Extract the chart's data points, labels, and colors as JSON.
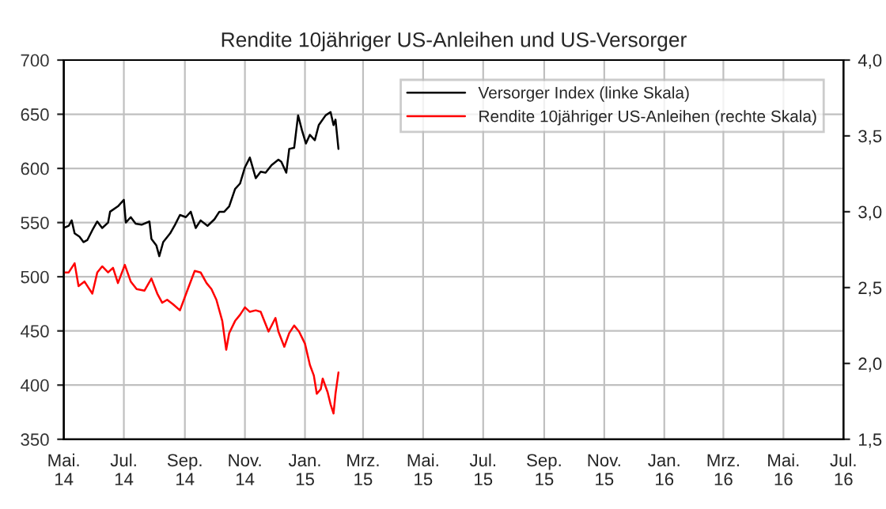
{
  "chart_data": {
    "type": "line",
    "title": "Rendite 10jähriger US-Anleihen und US-Versorger",
    "xlim": [
      "2014-05-01",
      "2016-07-01"
    ],
    "xticks": [
      {
        "value": "2014-05-01",
        "label": "Mai.\n14"
      },
      {
        "value": "2014-07-01",
        "label": "Jul.\n14"
      },
      {
        "value": "2014-09-01",
        "label": "Sep.\n14"
      },
      {
        "value": "2014-11-01",
        "label": "Nov.\n14"
      },
      {
        "value": "2015-01-01",
        "label": "Jan.\n15"
      },
      {
        "value": "2015-03-01",
        "label": "Mrz.\n15"
      },
      {
        "value": "2015-05-01",
        "label": "Mai.\n15"
      },
      {
        "value": "2015-07-01",
        "label": "Jul.\n15"
      },
      {
        "value": "2015-09-01",
        "label": "Sep.\n15"
      },
      {
        "value": "2015-11-01",
        "label": "Nov.\n15"
      },
      {
        "value": "2016-01-01",
        "label": "Jan.\n16"
      },
      {
        "value": "2016-03-01",
        "label": "Mrz.\n16"
      },
      {
        "value": "2016-05-01",
        "label": "Mai.\n16"
      },
      {
        "value": "2016-07-01",
        "label": "Jul.\n16"
      }
    ],
    "ylim": [
      350,
      700
    ],
    "yticks": [
      350,
      400,
      450,
      500,
      550,
      600,
      650,
      700
    ],
    "y2lim": [
      1.5,
      4.0
    ],
    "y2ticks": [
      {
        "value": 1.5,
        "label": "1,5"
      },
      {
        "value": 2.0,
        "label": "2,0"
      },
      {
        "value": 2.5,
        "label": "2,5"
      },
      {
        "value": 3.0,
        "label": "3,0"
      },
      {
        "value": 3.5,
        "label": "3,5"
      },
      {
        "value": 4.0,
        "label": "4,0"
      }
    ],
    "grid": true,
    "legend": "top right",
    "series": [
      {
        "name": "Versorger Index (linke Skala)",
        "color": "#000000",
        "x": [
          "2014-05-01",
          "2014-05-06",
          "2014-05-09",
          "2014-05-12",
          "2014-05-17",
          "2014-05-21",
          "2014-05-25",
          "2014-05-30",
          "2014-06-04",
          "2014-06-09",
          "2014-06-15",
          "2014-06-17",
          "2014-06-25",
          "2014-07-01",
          "2014-07-03",
          "2014-07-08",
          "2014-07-13",
          "2014-07-19",
          "2014-07-27",
          "2014-07-29",
          "2014-08-03",
          "2014-08-06",
          "2014-08-10",
          "2014-08-17",
          "2014-08-22",
          "2014-08-27",
          "2014-09-02",
          "2014-09-07",
          "2014-09-12",
          "2014-09-17",
          "2014-09-24",
          "2014-10-01",
          "2014-10-06",
          "2014-10-11",
          "2014-10-16",
          "2014-10-22",
          "2014-10-27",
          "2014-11-01",
          "2014-11-06",
          "2014-11-12",
          "2014-11-17",
          "2014-11-22",
          "2014-11-28",
          "2014-12-05",
          "2014-12-08",
          "2014-12-13",
          "2014-12-16",
          "2014-12-21",
          "2014-12-25",
          "2014-12-29",
          "2015-01-02",
          "2015-01-06",
          "2015-01-11",
          "2015-01-15",
          "2015-01-22",
          "2015-01-27",
          "2015-01-30",
          "2015-02-01",
          "2015-02-04"
        ],
        "values": [
          545,
          547,
          552,
          540,
          537,
          532,
          534,
          543,
          551,
          545,
          550,
          560,
          565,
          571,
          550,
          555,
          549,
          548,
          551,
          535,
          529,
          519,
          532,
          540,
          548,
          557,
          555,
          560,
          545,
          552,
          547,
          553,
          560,
          560,
          565,
          581,
          586,
          601,
          610,
          591,
          597,
          596,
          603,
          608,
          606,
          596,
          618,
          619,
          649,
          635,
          623,
          631,
          626,
          640,
          649,
          652,
          640,
          645,
          618
        ]
      },
      {
        "name": "Rendite 10jähriger US-Anleihen (rechte Skala)",
        "color": "#ff0000",
        "axis": "y2",
        "x": [
          "2014-05-01",
          "2014-05-06",
          "2014-05-12",
          "2014-05-16",
          "2014-05-22",
          "2014-05-26",
          "2014-05-30",
          "2014-06-04",
          "2014-06-09",
          "2014-06-15",
          "2014-06-20",
          "2014-06-25",
          "2014-07-02",
          "2014-07-08",
          "2014-07-14",
          "2014-07-22",
          "2014-07-29",
          "2014-08-04",
          "2014-08-09",
          "2014-08-14",
          "2014-08-20",
          "2014-08-27",
          "2014-09-04",
          "2014-09-11",
          "2014-09-17",
          "2014-09-23",
          "2014-09-28",
          "2014-10-03",
          "2014-10-09",
          "2014-10-13",
          "2014-10-16",
          "2014-10-22",
          "2014-10-27",
          "2014-11-01",
          "2014-11-06",
          "2014-11-12",
          "2014-11-17",
          "2014-11-25",
          "2014-12-02",
          "2014-12-05",
          "2014-12-11",
          "2014-12-16",
          "2014-12-21",
          "2014-12-26",
          "2015-01-01",
          "2015-01-06",
          "2015-01-10",
          "2015-01-13",
          "2015-01-17",
          "2015-01-19",
          "2015-01-24",
          "2015-01-27",
          "2015-01-30",
          "2015-02-01",
          "2015-02-04"
        ],
        "values": [
          2.6,
          2.6,
          2.66,
          2.51,
          2.54,
          2.5,
          2.46,
          2.6,
          2.64,
          2.6,
          2.63,
          2.53,
          2.65,
          2.54,
          2.49,
          2.48,
          2.56,
          2.46,
          2.4,
          2.42,
          2.39,
          2.35,
          2.49,
          2.61,
          2.6,
          2.53,
          2.49,
          2.42,
          2.28,
          2.09,
          2.2,
          2.28,
          2.32,
          2.37,
          2.34,
          2.35,
          2.34,
          2.21,
          2.3,
          2.21,
          2.11,
          2.2,
          2.25,
          2.21,
          2.13,
          1.99,
          1.92,
          1.8,
          1.83,
          1.9,
          1.81,
          1.73,
          1.67,
          1.8,
          1.94
        ]
      }
    ]
  }
}
